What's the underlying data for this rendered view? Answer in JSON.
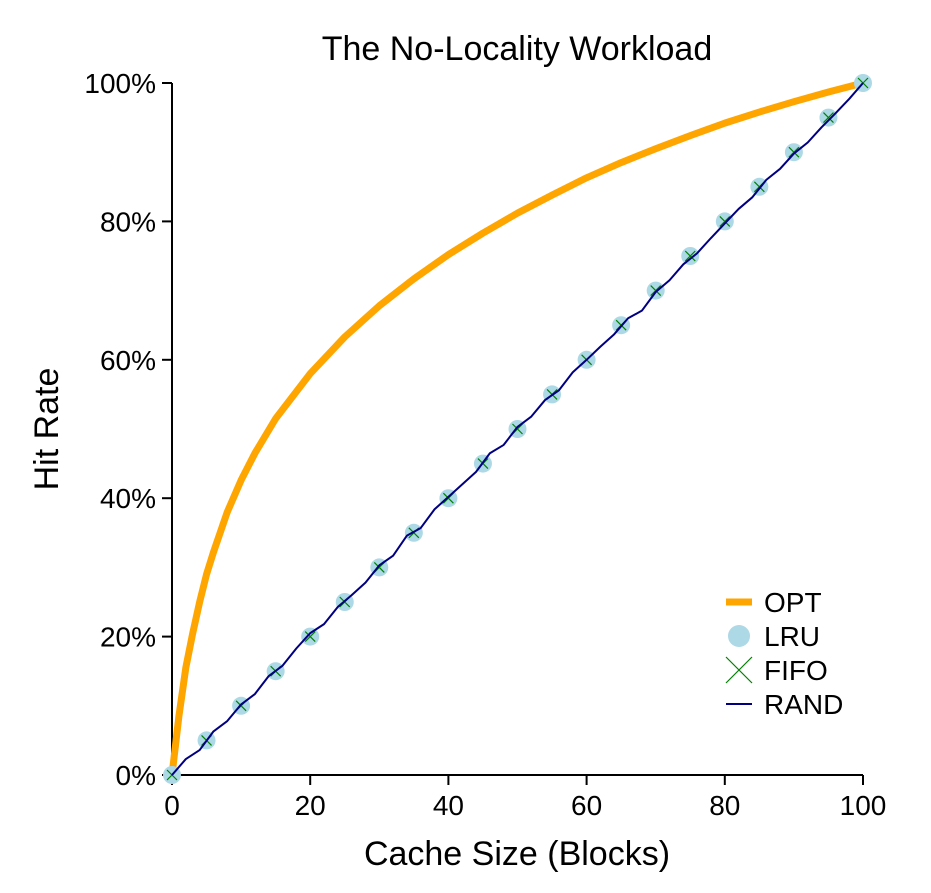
{
  "chart_data": {
    "type": "line",
    "title": "The No-Locality Workload",
    "xlabel": "Cache Size (Blocks)",
    "ylabel": "Hit Rate",
    "xlim": [
      0,
      100
    ],
    "ylim": [
      0,
      100
    ],
    "x_ticks": [
      0,
      20,
      40,
      60,
      80,
      100
    ],
    "x_tick_labels": [
      "0",
      "20",
      "40",
      "60",
      "80",
      "100"
    ],
    "y_ticks": [
      0,
      20,
      40,
      60,
      80,
      100
    ],
    "y_tick_labels": [
      "0%",
      "20%",
      "40%",
      "60%",
      "80%",
      "100%"
    ],
    "grid": false,
    "legend_position": "bottom-right",
    "series": [
      {
        "name": "OPT",
        "style": "thick-line",
        "color": "#FFA500",
        "x": [
          0,
          1,
          2,
          3,
          4,
          5,
          6,
          8,
          10,
          12,
          15,
          20,
          25,
          30,
          35,
          40,
          45,
          50,
          55,
          60,
          65,
          70,
          75,
          80,
          85,
          90,
          95,
          100
        ],
        "y": [
          0,
          8.5,
          15.5,
          20.5,
          25.0,
          29.0,
          32.2,
          38.0,
          42.6,
          46.5,
          51.5,
          58.0,
          63.3,
          67.8,
          71.7,
          75.2,
          78.3,
          81.2,
          83.8,
          86.3,
          88.5,
          90.5,
          92.4,
          94.2,
          95.8,
          97.3,
          98.7,
          100
        ]
      },
      {
        "name": "LRU",
        "style": "circle-markers",
        "color": "#ADD8E6",
        "x": [
          0,
          5,
          10,
          15,
          20,
          25,
          30,
          35,
          40,
          45,
          50,
          55,
          60,
          65,
          70,
          75,
          80,
          85,
          90,
          95,
          100
        ],
        "y": [
          0,
          5,
          10,
          15,
          20,
          25,
          30,
          35,
          40,
          45,
          50,
          55,
          60,
          65,
          70,
          75,
          80,
          85,
          90,
          95,
          100
        ]
      },
      {
        "name": "FIFO",
        "style": "x-markers",
        "color": "#008000",
        "x": [
          0,
          5,
          10,
          15,
          20,
          25,
          30,
          35,
          40,
          45,
          50,
          55,
          60,
          65,
          70,
          75,
          80,
          85,
          90,
          95,
          100
        ],
        "y": [
          0,
          5,
          10,
          15,
          20,
          25,
          30,
          35,
          40,
          45,
          50,
          55,
          60,
          65,
          70,
          75,
          80,
          85,
          90,
          95,
          100
        ]
      },
      {
        "name": "RAND",
        "style": "thin-line",
        "color": "#000080",
        "x": [
          0,
          2,
          4,
          6,
          8,
          10,
          12,
          14,
          16,
          18,
          20,
          22,
          24,
          26,
          28,
          30,
          32,
          34,
          36,
          38,
          40,
          42,
          44,
          46,
          48,
          50,
          52,
          54,
          56,
          58,
          60,
          62,
          64,
          66,
          68,
          70,
          72,
          74,
          76,
          78,
          80,
          82,
          84,
          86,
          88,
          90,
          92,
          94,
          96,
          98,
          100
        ],
        "y": [
          0,
          2.3,
          3.6,
          6.3,
          7.8,
          10.2,
          11.7,
          14.3,
          15.8,
          18.3,
          20.5,
          21.8,
          24.3,
          26.0,
          27.8,
          30.3,
          31.7,
          34.6,
          35.7,
          38.4,
          40.2,
          42.0,
          43.8,
          46.5,
          47.7,
          50.3,
          51.8,
          54.2,
          55.6,
          58.2,
          60.0,
          61.9,
          63.7,
          66.0,
          67.1,
          69.8,
          71.5,
          73.8,
          75.4,
          77.6,
          79.7,
          81.8,
          83.5,
          86.0,
          87.6,
          89.8,
          91.4,
          93.6,
          95.6,
          97.7,
          100
        ]
      }
    ]
  }
}
